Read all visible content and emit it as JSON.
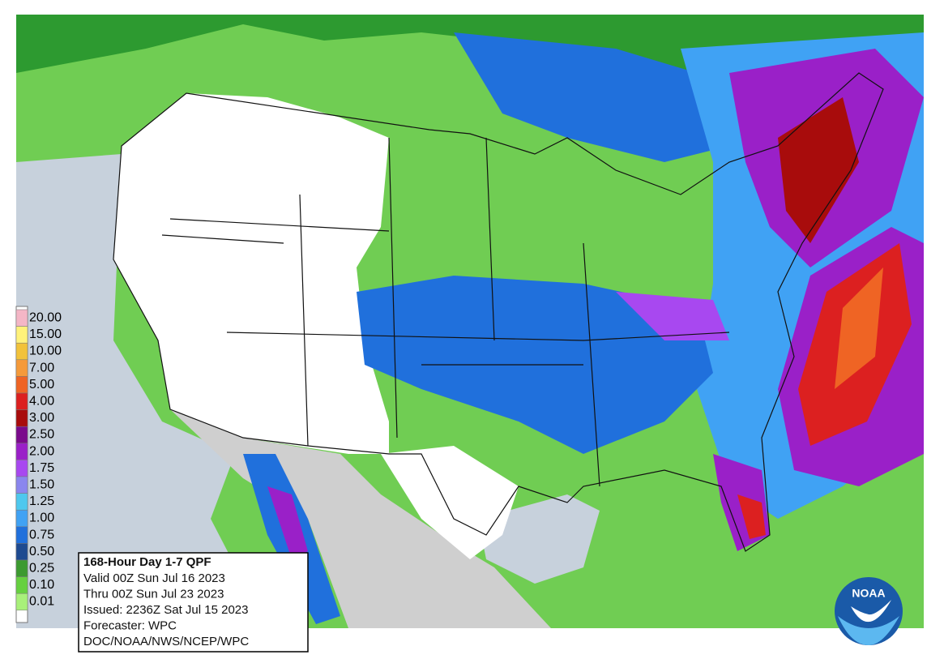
{
  "legend": {
    "labels": [
      "20.00",
      "15.00",
      "10.00",
      "7.00",
      "5.00",
      "4.00",
      "3.00",
      "2.50",
      "2.00",
      "1.75",
      "1.50",
      "1.25",
      "1.00",
      "0.75",
      "0.50",
      "0.25",
      "0.10",
      "0.01"
    ],
    "colors": [
      "#f4b6c6",
      "#fff27a",
      "#f2c23a",
      "#f59a3a",
      "#ef6424",
      "#dc2020",
      "#a80c0c",
      "#7a0a8c",
      "#9a20c8",
      "#a848f0",
      "#8a86ee",
      "#4ec8ee",
      "#40a2f4",
      "#2070dc",
      "#1e4a90",
      "#3c9a30",
      "#66d040",
      "#a8f07a"
    ]
  },
  "info": {
    "title": "168-Hour Day 1-7 QPF",
    "lines": [
      "Valid 00Z Sun Jul 16 2023",
      "Thru 00Z Sun Jul 23 2023",
      "Issued: 2236Z Sat Jul 15 2023",
      "Forecaster: WPC",
      "DOC/NOAA/NWS/NCEP/WPC"
    ]
  },
  "logo": "NOAA"
}
